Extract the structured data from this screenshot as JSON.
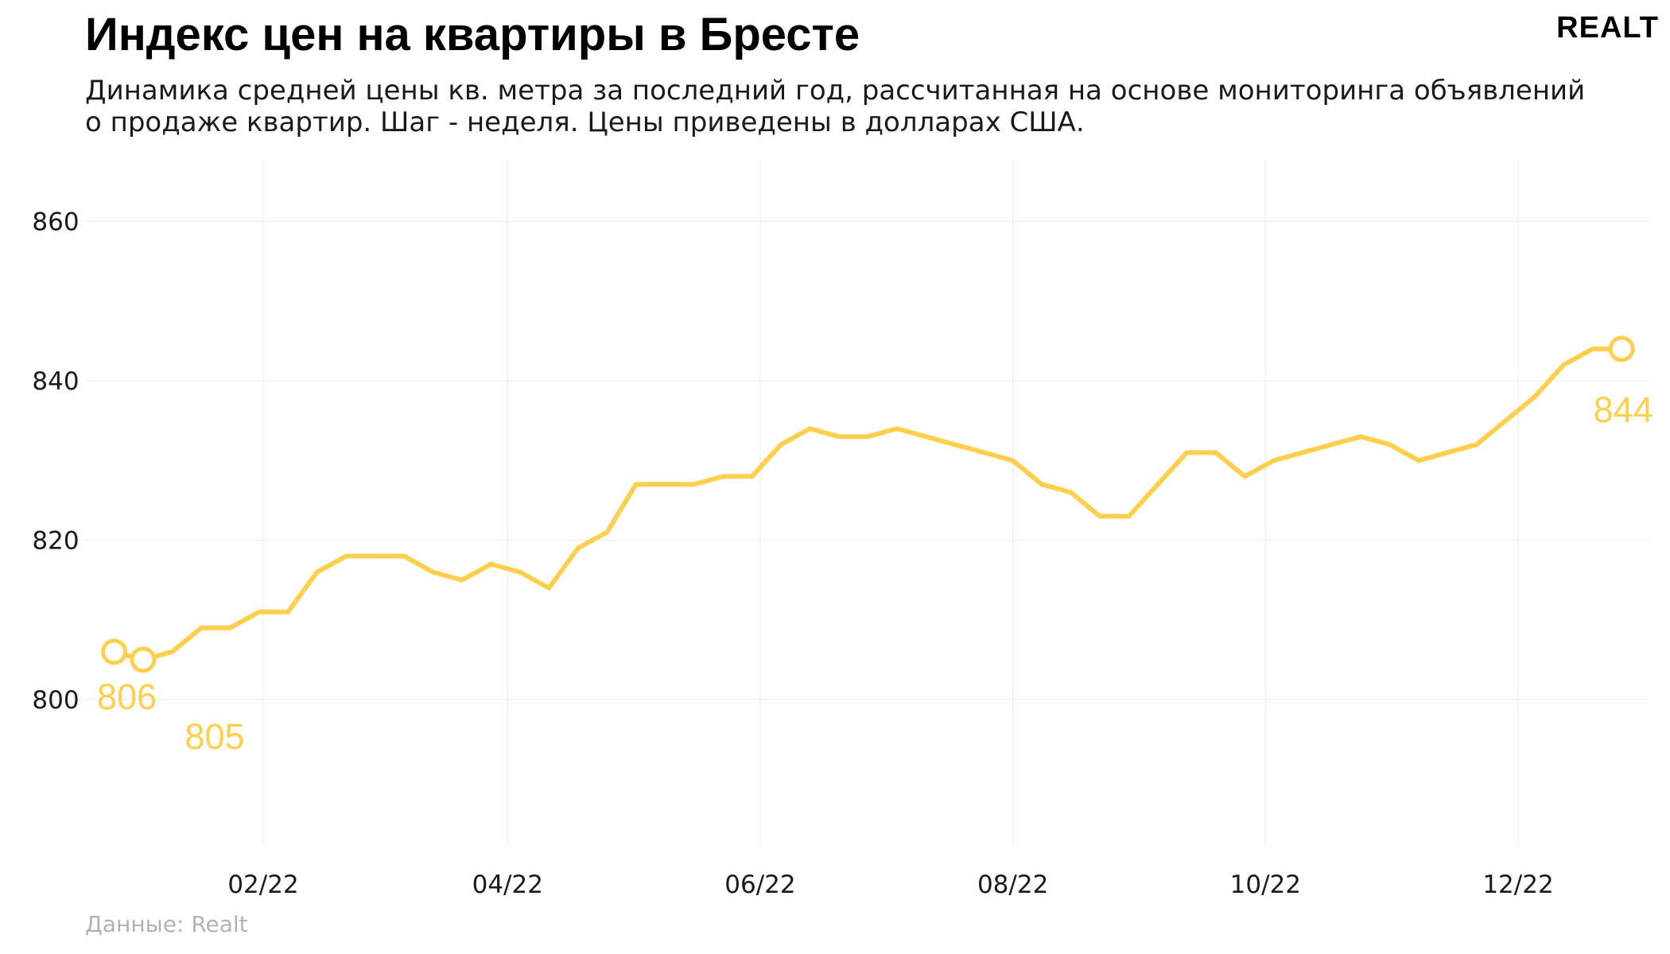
{
  "title": "Индекс цен на квартиры в Бресте",
  "subtitle": "Динамика средней цены кв. метра за последний год, рассчитанная на основе мониторинга объявлений о продаже квартир. Шаг - неделя. Цены приведены в долларах США.",
  "logo": "REALT",
  "source": "Данные: Realt",
  "colors": {
    "line": "#ffcf4d",
    "grid": "#ececec",
    "text": "#1a1a1a"
  },
  "chart_data": {
    "type": "line",
    "x_axis": "date",
    "xticks": [
      {
        "date": "2022-02-01",
        "label": "02/22"
      },
      {
        "date": "2022-04-01",
        "label": "04/22"
      },
      {
        "date": "2022-06-01",
        "label": "06/22"
      },
      {
        "date": "2022-08-01",
        "label": "08/22"
      },
      {
        "date": "2022-10-01",
        "label": "10/22"
      },
      {
        "date": "2022-12-01",
        "label": "12/22"
      }
    ],
    "yticks": [
      800,
      820,
      840,
      860
    ],
    "ylim": [
      783,
      868
    ],
    "grid": true,
    "series": [
      {
        "x": [
          "2021-12-27",
          "2022-01-03",
          "2022-01-10",
          "2022-01-17",
          "2022-01-24",
          "2022-01-31",
          "2022-02-07",
          "2022-02-14",
          "2022-02-21",
          "2022-02-28",
          "2022-03-07",
          "2022-03-14",
          "2022-03-21",
          "2022-03-28",
          "2022-04-04",
          "2022-04-11",
          "2022-04-18",
          "2022-04-25",
          "2022-05-02",
          "2022-05-09",
          "2022-05-16",
          "2022-05-23",
          "2022-05-30",
          "2022-06-06",
          "2022-06-13",
          "2022-06-20",
          "2022-06-27",
          "2022-07-04",
          "2022-07-11",
          "2022-07-18",
          "2022-07-25",
          "2022-08-01",
          "2022-08-08",
          "2022-08-15",
          "2022-08-22",
          "2022-08-29",
          "2022-09-05",
          "2022-09-12",
          "2022-09-19",
          "2022-09-26",
          "2022-10-03",
          "2022-10-10",
          "2022-10-17",
          "2022-10-24",
          "2022-10-31",
          "2022-11-07",
          "2022-11-14",
          "2022-11-21",
          "2022-11-28",
          "2022-12-05",
          "2022-12-12",
          "2022-12-19",
          "2022-12-26"
        ],
        "values": [
          806,
          805,
          806,
          809,
          809,
          811,
          811,
          816,
          818,
          818,
          818,
          816,
          815,
          817,
          816,
          814,
          819,
          821,
          827,
          827,
          827,
          828,
          828,
          832,
          834,
          833,
          833,
          834,
          833,
          832,
          831,
          830,
          827,
          826,
          823,
          823,
          827,
          831,
          831,
          828,
          830,
          831,
          832,
          833,
          832,
          830,
          831,
          832,
          835,
          838,
          842,
          844,
          844
        ]
      }
    ],
    "annotations": [
      {
        "date": "2021-12-27",
        "value": 806,
        "label": "806"
      },
      {
        "date": "2022-01-03",
        "value": 805,
        "label": "805"
      },
      {
        "date": "2022-12-26",
        "value": 844,
        "label": "844"
      }
    ]
  }
}
